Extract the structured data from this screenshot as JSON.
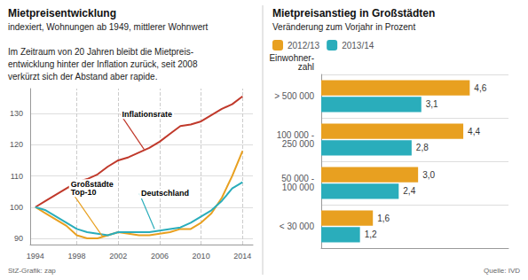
{
  "chart_data": [
    {
      "type": "line",
      "title": "Mietpreisentwicklung",
      "subtitle": "indexiert, Wohnungen ab 1949, mittlerer Wohnwert",
      "text": [
        "Im Zeitraum von 20 Jahren bleibt die Mietpreis-",
        "entwicklung hinter der Inflation zurück, seit 2008",
        "verkürzt sich der Abstand aber rapide."
      ],
      "source": "StZ-Grafik: zap",
      "x": [
        1994,
        1995,
        1996,
        1997,
        1998,
        1999,
        2000,
        2001,
        2002,
        2003,
        2004,
        2005,
        2006,
        2007,
        2008,
        2009,
        2010,
        2011,
        2012,
        2013,
        2014
      ],
      "series": [
        {
          "color": "#c0392b",
          "values": [
            100,
            102,
            104,
            106,
            108,
            109,
            110.5,
            113,
            115,
            116,
            117.5,
            119,
            121,
            123.5,
            126,
            126.5,
            127.5,
            129.5,
            131.5,
            133,
            135.5
          ]
        },
        {
          "color": "#e8a020",
          "values": [
            100,
            98,
            96,
            94,
            91,
            90,
            90,
            91,
            92,
            91.5,
            91,
            91,
            91.5,
            92,
            93,
            93,
            95,
            98,
            103,
            110,
            118
          ]
        },
        {
          "color": "#2aadbb",
          "values": [
            100,
            99,
            97,
            95,
            93,
            92,
            91.5,
            91,
            92,
            92,
            92,
            92,
            92.5,
            93,
            93.5,
            95,
            97,
            99,
            102,
            106,
            108
          ]
        }
      ],
      "annotations": [
        {
          "text": "Inflationsrate",
          "x": 2004.5,
          "y": 118.5
        },
        {
          "text": "Großstädte\nTop-10",
          "x": 2000.5,
          "y": 90.5
        },
        {
          "text": "Deutschland",
          "x": 2005.5,
          "y": 93
        }
      ],
      "vlines": [
        1998,
        2002,
        2006,
        2010,
        2014
      ],
      "xlim": [
        1993.5,
        2015
      ],
      "xticks": [
        1994,
        1998,
        2002,
        2006,
        2010,
        2014
      ],
      "ylim": [
        88,
        138
      ],
      "yticks": [
        90,
        100,
        110,
        120,
        130
      ],
      "grid": true
    },
    {
      "type": "bar",
      "orientation": "horizontal",
      "title": "Mietpreisanstieg in Großstädten",
      "subtitle": "Veränderung zum Vorjahr in Prozent",
      "source": "Quelle: IVD",
      "ylabel": "Einwohner-\nzahl",
      "categories": [
        "> 500 000",
        "100 000 -\n250 000",
        "50 000 -\n100 000",
        "< 30 000"
      ],
      "series": [
        {
          "name": "2012/13",
          "color": "#e8a020",
          "values": [
            4.6,
            4.4,
            3.0,
            1.6
          ],
          "value_labels": [
            "4,6",
            "4,4",
            "3,0",
            "1,6"
          ]
        },
        {
          "name": "2013/14",
          "color": "#2aadbb",
          "values": [
            3.1,
            2.8,
            2.4,
            1.2
          ],
          "value_labels": [
            "3,1",
            "2,8",
            "2,4",
            "1,2"
          ]
        }
      ],
      "xlim": [
        0,
        5.8
      ],
      "data_labels": true,
      "tick_labels": "y",
      "grid": true,
      "legend": "upper left"
    }
  ]
}
